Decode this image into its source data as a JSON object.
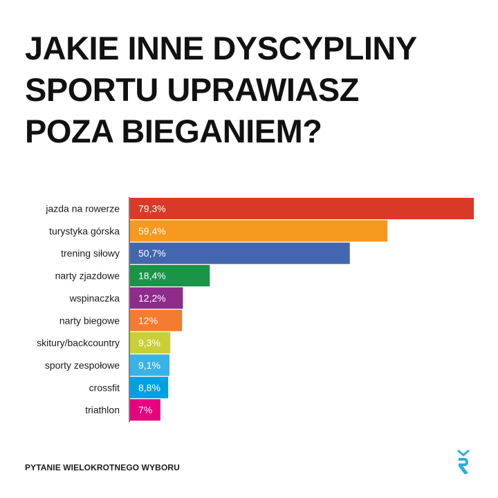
{
  "title_lines": [
    "JAKIE INNE DYSCYPLINY",
    "SPORTU UPRAWIASZ",
    "POZA BIEGANIEM?"
  ],
  "footer": "PYTANIE WIELOKROTNEGO WYBORU",
  "brand_logo": "runner-logo-icon",
  "chart_data": {
    "type": "bar",
    "orientation": "horizontal",
    "title": "JAKIE INNE DYSCYPLINY SPORTU UPRAWIASZ POZA BIEGANIEM?",
    "categories": [
      "jazda na rowerze",
      "turystyka górska",
      "trening siłowy",
      "narty zjazdowe",
      "wspinaczka",
      "narty biegowe",
      "skitury/backcountry",
      "sporty zespołowe",
      "crossfit",
      "triathlon"
    ],
    "values": [
      79.3,
      59.4,
      50.7,
      18.4,
      12.2,
      12,
      9.3,
      9.1,
      8.8,
      7
    ],
    "labels": [
      "79,3%",
      "59,4%",
      "50,7%",
      "18,4%",
      "12,2%",
      "12%",
      "9,3%",
      "9,1%",
      "8,8%",
      "7%"
    ],
    "colors": [
      "#d93a27",
      "#f7991e",
      "#4267ae",
      "#1a9447",
      "#8e2b8b",
      "#f47b30",
      "#cbcf36",
      "#39b2e7",
      "#00a0e1",
      "#e6007e"
    ],
    "xlim": [
      0,
      79.3
    ],
    "grid": false,
    "legend": "none"
  }
}
